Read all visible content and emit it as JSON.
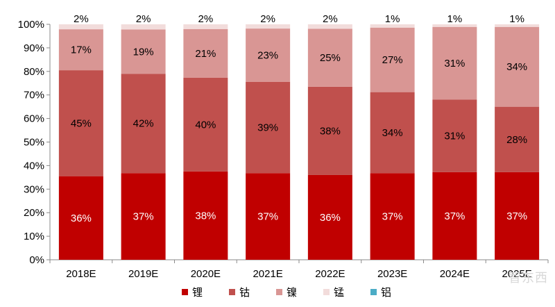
{
  "chart_data": {
    "type": "bar",
    "stacked": true,
    "normalized": true,
    "categories": [
      "2018E",
      "2019E",
      "2020E",
      "2021E",
      "2022E",
      "2023E",
      "2024E",
      "2025E"
    ],
    "series": [
      {
        "name": "锂",
        "color": "#c00000",
        "values": [
          35.5,
          36.8,
          37.5,
          36.8,
          36.0,
          36.8,
          37.2,
          37.2
        ],
        "labels": [
          "36%",
          "37%",
          "38%",
          "37%",
          "36%",
          "37%",
          "37%",
          "37%"
        ],
        "label_color": "#ffffff"
      },
      {
        "name": "钴",
        "color": "#c0504d",
        "values": [
          45.0,
          42.2,
          39.8,
          38.8,
          37.5,
          34.4,
          30.8,
          27.8
        ],
        "labels": [
          "45%",
          "42%",
          "40%",
          "39%",
          "38%",
          "34%",
          "31%",
          "28%"
        ],
        "label_color": "#000000"
      },
      {
        "name": "镍",
        "color": "#d99694",
        "values": [
          17.4,
          18.8,
          20.7,
          22.6,
          24.6,
          27.4,
          30.9,
          33.9
        ],
        "labels": [
          "17%",
          "19%",
          "21%",
          "23%",
          "25%",
          "27%",
          "31%",
          "34%"
        ],
        "label_color": "#000000"
      },
      {
        "name": "锰",
        "color": "#f2dcdb",
        "values": [
          2.1,
          2.2,
          2.0,
          1.8,
          1.9,
          1.4,
          1.1,
          1.1
        ],
        "labels": [
          "2%",
          "2%",
          "2%",
          "2%",
          "2%",
          "1%",
          "1%",
          "1%"
        ],
        "label_color": "#000000"
      },
      {
        "name": "铝",
        "color": "#4bacc6",
        "values": [
          0,
          0,
          0,
          0,
          0,
          0,
          0,
          0
        ],
        "labels": [
          "",
          "",
          "",
          "",
          "",
          "",
          "",
          ""
        ],
        "label_color": "#000000"
      }
    ],
    "yticks": [
      "0%",
      "10%",
      "20%",
      "30%",
      "40%",
      "50%",
      "60%",
      "70%",
      "80%",
      "90%",
      "100%"
    ],
    "ylim": [
      0,
      100
    ],
    "grid": false,
    "legend_position": "bottom"
  },
  "watermark": "智东西"
}
